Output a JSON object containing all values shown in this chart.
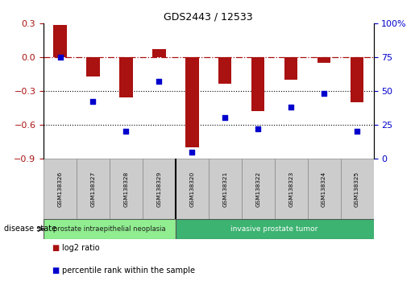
{
  "title": "GDS2443 / 12533",
  "samples": [
    "GSM138326",
    "GSM138327",
    "GSM138328",
    "GSM138329",
    "GSM138320",
    "GSM138321",
    "GSM138322",
    "GSM138323",
    "GSM138324",
    "GSM138325"
  ],
  "log2_ratio": [
    0.28,
    -0.17,
    -0.36,
    0.07,
    -0.8,
    -0.24,
    -0.48,
    -0.2,
    -0.05,
    -0.4
  ],
  "percentile_rank": [
    75,
    42,
    20,
    57,
    5,
    30,
    22,
    38,
    48,
    20
  ],
  "bar_color": "#AA1111",
  "dot_color": "#0000CC",
  "left_ylim": [
    -0.9,
    0.3
  ],
  "left_yticks": [
    0.3,
    0.0,
    -0.3,
    -0.6,
    -0.9
  ],
  "right_ylim": [
    0,
    100
  ],
  "right_yticks": [
    0,
    25,
    50,
    75,
    100
  ],
  "right_yticklabels": [
    "0",
    "25",
    "50",
    "75",
    "100%"
  ],
  "hline_y": 0.0,
  "dotted_lines": [
    -0.3,
    -0.6
  ],
  "group1_label": "prostate intraepithelial neoplasia",
  "group2_label": "invasive prostate tumor",
  "group1_count": 4,
  "group2_count": 6,
  "group1_color": "#90EE90",
  "group2_color": "#3CB371",
  "disease_state_label": "disease state",
  "legend_items": [
    "log2 ratio",
    "percentile rank within the sample"
  ],
  "legend_colors": [
    "#AA1111",
    "#0000CC"
  ],
  "bar_width": 0.4
}
